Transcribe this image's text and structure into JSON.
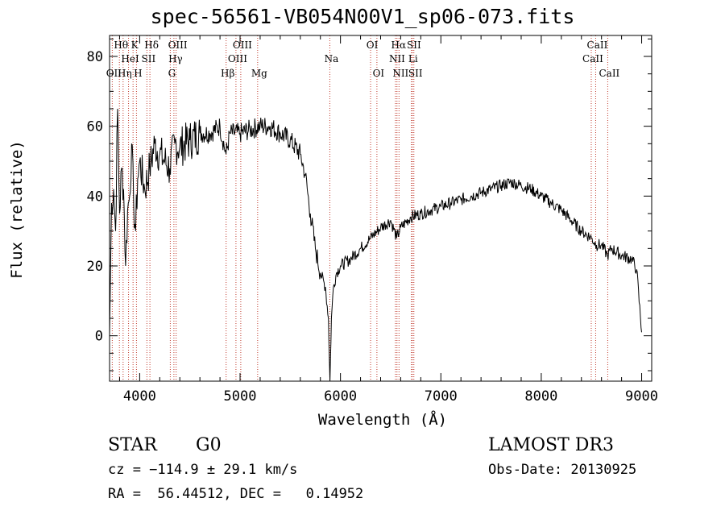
{
  "chart_data": {
    "type": "line",
    "title": "spec-56561-VB054N00V1_sp06-073.fits",
    "xlabel": "Wavelength (Å)",
    "ylabel": "Flux (relative)",
    "xlim": [
      3700,
      9100
    ],
    "ylim": [
      -13,
      86
    ],
    "xticks": [
      4000,
      5000,
      6000,
      7000,
      8000,
      9000
    ],
    "yticks": [
      0,
      20,
      40,
      60,
      80
    ],
    "xtick_labels": [
      "4000",
      "5000",
      "6000",
      "7000",
      "8000",
      "9000"
    ],
    "ytick_labels": [
      "0",
      "20",
      "40",
      "60",
      "80"
    ],
    "series": [
      {
        "name": "flux",
        "x": [
          3700,
          3720,
          3740,
          3760,
          3780,
          3800,
          3820,
          3840,
          3860,
          3880,
          3900,
          3920,
          3940,
          3960,
          3980,
          4000,
          4050,
          4100,
          4150,
          4200,
          4250,
          4300,
          4350,
          4400,
          4500,
          4600,
          4700,
          4800,
          4860,
          4900,
          5000,
          5100,
          5200,
          5300,
          5400,
          5500,
          5600,
          5650,
          5700,
          5750,
          5800,
          5850,
          5880,
          5895,
          5910,
          5930,
          5960,
          6000,
          6100,
          6200,
          6300,
          6400,
          6500,
          6560,
          6600,
          6700,
          6800,
          6900,
          7000,
          7100,
          7200,
          7300,
          7400,
          7500,
          7600,
          7700,
          7800,
          7900,
          8000,
          8100,
          8200,
          8300,
          8400,
          8500,
          8550,
          8600,
          8660,
          8700,
          8800,
          8900,
          8950,
          9000
        ],
        "y": [
          0,
          38,
          42,
          30,
          65,
          35,
          48,
          42,
          20,
          36,
          40,
          55,
          38,
          30,
          45,
          50,
          42,
          48,
          55,
          52,
          50,
          48,
          55,
          54,
          56,
          58,
          58,
          60,
          52,
          58,
          58,
          59,
          60,
          60,
          58,
          56,
          52,
          46,
          35,
          25,
          18,
          14,
          5,
          -13,
          5,
          14,
          18,
          20,
          22,
          25,
          28,
          31,
          33,
          28,
          31,
          34,
          35,
          36,
          37,
          38,
          39,
          40,
          41,
          42,
          43,
          44,
          43,
          42,
          40,
          38,
          36,
          33,
          30,
          28,
          26,
          26,
          23,
          25,
          23,
          22,
          19,
          1
        ]
      }
    ],
    "lines": [
      {
        "name": "OII",
        "wavelength": 3727,
        "row": 2
      },
      {
        "name": "Hθ",
        "wavelength": 3798,
        "row": 0
      },
      {
        "name": "Hη",
        "wavelength": 3835,
        "row": 2
      },
      {
        "name": "K",
        "wavelength": 3934,
        "row": 0
      },
      {
        "name": "H",
        "wavelength": 3968,
        "row": 2
      },
      {
        "name": "HeI",
        "wavelength": 3889,
        "row": 1
      },
      {
        "name": "SII",
        "wavelength": 4072,
        "row": 1
      },
      {
        "name": "Hδ",
        "wavelength": 4102,
        "row": 0
      },
      {
        "name": "OIII",
        "wavelength": 4363,
        "row": 0
      },
      {
        "name": "Hγ",
        "wavelength": 4341,
        "row": 1
      },
      {
        "name": "G",
        "wavelength": 4305,
        "row": 2
      },
      {
        "name": "Hβ",
        "wavelength": 4861,
        "row": 2
      },
      {
        "name": "OIII",
        "wavelength": 4959,
        "row": 1
      },
      {
        "name": "OIII",
        "wavelength": 5007,
        "row": 0
      },
      {
        "name": "Mg",
        "wavelength": 5175,
        "row": 2
      },
      {
        "name": "Na",
        "wavelength": 5894,
        "row": 1
      },
      {
        "name": "OI",
        "wavelength": 6300,
        "row": 0
      },
      {
        "name": "OI",
        "wavelength": 6363,
        "row": 2
      },
      {
        "name": "NII",
        "wavelength": 6548,
        "row": 1
      },
      {
        "name": "Hα",
        "wavelength": 6563,
        "row": 0
      },
      {
        "name": "NII",
        "wavelength": 6583,
        "row": 2
      },
      {
        "name": "Li",
        "wavelength": 6707,
        "row": 1
      },
      {
        "name": "SII",
        "wavelength": 6716,
        "row": 0
      },
      {
        "name": "SII",
        "wavelength": 6731,
        "row": 2
      },
      {
        "name": "CaII",
        "wavelength": 8498,
        "row": 1
      },
      {
        "name": "CaII",
        "wavelength": 8542,
        "row": 0
      },
      {
        "name": "CaII",
        "wavelength": 8662,
        "row": 2
      }
    ],
    "colors": {
      "line": "#000000",
      "marker": "#c0392b",
      "axis": "#000000"
    }
  },
  "info": {
    "class": "STAR",
    "subclass": "G0",
    "survey": "LAMOST DR3",
    "cz": "cz = −114.9 ± 29.1 km/s",
    "obs_date": "Obs-Date: 20130925",
    "radec": "RA =  56.44512, DEC =   0.14952"
  }
}
